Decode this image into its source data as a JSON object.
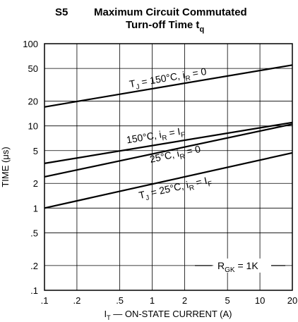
{
  "figure_id": "S5",
  "title_line1": "Maximum Circuit Commutated",
  "title_line2": "Turn-off Time t",
  "title_sub": "q",
  "chart_data": {
    "type": "line",
    "xscale": "log",
    "yscale": "log",
    "xlim": [
      0.1,
      20
    ],
    "ylim": [
      0.1,
      100
    ],
    "grid": true,
    "x_ticks": [
      ".1",
      ".2",
      ".5",
      "1",
      "2",
      "5",
      "10",
      "20"
    ],
    "x_tick_values": [
      0.1,
      0.2,
      0.5,
      1,
      2,
      5,
      10,
      20
    ],
    "y_ticks": [
      "100",
      "50",
      "20",
      "10",
      "5",
      "2",
      "1",
      ".5",
      ".2",
      ".1"
    ],
    "y_tick_values": [
      100,
      50,
      20,
      10,
      5,
      2,
      1,
      0.5,
      0.2,
      0.1
    ],
    "xlabel": {
      "pre": "I",
      "sub": "T",
      "post": " — ON-STATE CURRENT (A)"
    },
    "ylabel": "TIME (μs)",
    "series": [
      {
        "label": {
          "a": "T",
          "a_sub": "J",
          "b": " = 150°C, i",
          "b_sub": "R",
          "c": " = 0",
          "c_sub": ""
        },
        "x": [
          0.1,
          20
        ],
        "y": [
          17,
          55
        ]
      },
      {
        "label": {
          "a": "",
          "a_sub": "",
          "b": "150°C, i",
          "b_sub": "R",
          "c": " = I",
          "c_sub": "F"
        },
        "x": [
          0.1,
          20
        ],
        "y": [
          3.5,
          11
        ]
      },
      {
        "label": {
          "a": "",
          "a_sub": "",
          "b": "25°C, i",
          "b_sub": "R",
          "c": " = 0",
          "c_sub": ""
        },
        "x": [
          0.1,
          20
        ],
        "y": [
          2.4,
          10.5
        ]
      },
      {
        "label": {
          "a": "T",
          "a_sub": "J",
          "b": " = 25°C, i",
          "b_sub": "R",
          "c": " = I",
          "c_sub": "F"
        },
        "x": [
          0.1,
          20
        ],
        "y": [
          1,
          4.7
        ]
      }
    ],
    "annotation": {
      "pre": "R",
      "sub": "GK",
      "post": " = 1K"
    }
  }
}
